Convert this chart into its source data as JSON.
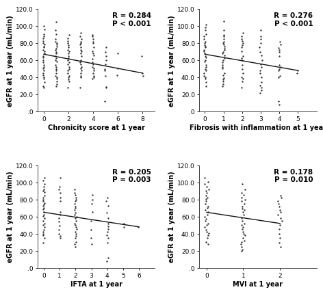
{
  "subplots": [
    {
      "xlabel": "Chronicity score at 1 year",
      "ylabel": "eGFR at 1 year (mL/min)",
      "R": "0.284",
      "P": "P < 0.001",
      "xlim": [
        -0.5,
        9
      ],
      "xticks": [
        0,
        2,
        4,
        6,
        8
      ],
      "regression": [
        0,
        67,
        8,
        45
      ],
      "scatter_x": [
        0,
        0,
        0,
        0,
        0,
        0,
        0,
        0,
        0,
        0,
        0,
        0,
        0,
        0,
        0,
        0,
        0,
        0,
        0,
        0,
        0,
        0,
        0,
        0,
        0,
        0,
        0,
        0,
        1,
        1,
        1,
        1,
        1,
        1,
        1,
        1,
        1,
        1,
        1,
        1,
        1,
        1,
        1,
        1,
        1,
        1,
        1,
        1,
        1,
        1,
        1,
        1,
        1,
        1,
        1,
        2,
        2,
        2,
        2,
        2,
        2,
        2,
        2,
        2,
        2,
        2,
        2,
        2,
        2,
        2,
        2,
        2,
        2,
        2,
        2,
        2,
        2,
        2,
        3,
        3,
        3,
        3,
        3,
        3,
        3,
        3,
        3,
        3,
        3,
        3,
        3,
        3,
        3,
        3,
        3,
        3,
        3,
        3,
        3,
        4,
        4,
        4,
        4,
        4,
        4,
        4,
        4,
        4,
        4,
        4,
        4,
        4,
        4,
        4,
        4,
        4,
        4,
        4,
        5,
        5,
        5,
        5,
        5,
        5,
        5,
        5,
        5,
        5,
        5,
        6,
        6,
        6,
        8,
        8,
        8
      ],
      "scatter_y": [
        100,
        96,
        90,
        88,
        85,
        82,
        80,
        78,
        76,
        75,
        72,
        70,
        68,
        65,
        63,
        60,
        58,
        55,
        52,
        50,
        48,
        45,
        42,
        40,
        38,
        35,
        30,
        28,
        105,
        95,
        90,
        85,
        82,
        80,
        78,
        76,
        74,
        72,
        70,
        68,
        65,
        62,
        60,
        58,
        55,
        52,
        50,
        48,
        45,
        42,
        40,
        38,
        35,
        32,
        30,
        90,
        85,
        82,
        80,
        78,
        75,
        72,
        70,
        68,
        65,
        62,
        60,
        58,
        55,
        52,
        50,
        48,
        45,
        42,
        40,
        38,
        35,
        28,
        92,
        88,
        85,
        82,
        80,
        78,
        75,
        72,
        70,
        68,
        65,
        60,
        58,
        55,
        52,
        50,
        48,
        45,
        42,
        40,
        28,
        90,
        88,
        85,
        82,
        80,
        75,
        70,
        68,
        65,
        62,
        58,
        55,
        52,
        50,
        48,
        45,
        42,
        40,
        38,
        75,
        70,
        65,
        60,
        55,
        50,
        48,
        42,
        29,
        28,
        12,
        68,
        50,
        42,
        65,
        45,
        42
      ]
    },
    {
      "xlabel": "Fibrosis with inflammation at 1 year",
      "ylabel": "eGFR at 1 year (mL/min)",
      "R": "0.276",
      "P": "P < 0.001",
      "xlim": [
        -0.3,
        6
      ],
      "xticks": [
        0,
        1,
        2,
        3,
        4,
        5
      ],
      "regression": [
        0,
        67,
        5,
        48
      ],
      "scatter_x": [
        0,
        0,
        0,
        0,
        0,
        0,
        0,
        0,
        0,
        0,
        0,
        0,
        0,
        0,
        0,
        0,
        0,
        0,
        0,
        0,
        0,
        0,
        0,
        0,
        0,
        0,
        0,
        0,
        1,
        1,
        1,
        1,
        1,
        1,
        1,
        1,
        1,
        1,
        1,
        1,
        1,
        1,
        1,
        1,
        1,
        1,
        1,
        1,
        1,
        1,
        1,
        1,
        1,
        1,
        1,
        2,
        2,
        2,
        2,
        2,
        2,
        2,
        2,
        2,
        2,
        2,
        2,
        2,
        2,
        2,
        2,
        2,
        2,
        3,
        3,
        3,
        3,
        3,
        3,
        3,
        3,
        3,
        3,
        3,
        3,
        3,
        3,
        3,
        3,
        3,
        3,
        4,
        4,
        4,
        4,
        4,
        4,
        4,
        4,
        4,
        4,
        4,
        4,
        4,
        4,
        5,
        5
      ],
      "scatter_y": [
        102,
        98,
        95,
        90,
        88,
        85,
        82,
        80,
        78,
        76,
        75,
        72,
        70,
        68,
        65,
        63,
        60,
        58,
        55,
        52,
        50,
        48,
        45,
        42,
        40,
        38,
        35,
        30,
        105,
        95,
        90,
        88,
        85,
        82,
        80,
        78,
        76,
        74,
        72,
        70,
        68,
        65,
        62,
        60,
        58,
        55,
        52,
        50,
        45,
        42,
        40,
        38,
        35,
        32,
        30,
        92,
        88,
        85,
        82,
        80,
        78,
        75,
        70,
        65,
        62,
        60,
        55,
        50,
        45,
        40,
        38,
        35,
        28,
        95,
        88,
        85,
        80,
        75,
        70,
        65,
        60,
        55,
        52,
        48,
        45,
        40,
        35,
        30,
        28,
        25,
        22,
        82,
        78,
        75,
        72,
        70,
        65,
        55,
        52,
        50,
        48,
        42,
        40,
        12,
        8,
        48,
        45
      ]
    },
    {
      "xlabel": "IFTA at 1 year",
      "ylabel": "eGFR at 1 year (mL/min)",
      "R": "0.205",
      "P": "P = 0.003",
      "xlim": [
        -0.4,
        7
      ],
      "xticks": [
        0,
        1,
        2,
        3,
        4,
        5,
        6
      ],
      "regression": [
        0,
        65,
        6,
        48
      ],
      "scatter_x": [
        0,
        0,
        0,
        0,
        0,
        0,
        0,
        0,
        0,
        0,
        0,
        0,
        0,
        0,
        0,
        0,
        0,
        0,
        0,
        0,
        0,
        0,
        0,
        0,
        0,
        0,
        0,
        0,
        0,
        0,
        1,
        1,
        1,
        1,
        1,
        1,
        1,
        1,
        1,
        1,
        1,
        1,
        1,
        1,
        1,
        2,
        2,
        2,
        2,
        2,
        2,
        2,
        2,
        2,
        2,
        2,
        2,
        2,
        2,
        2,
        2,
        2,
        2,
        2,
        2,
        2,
        2,
        2,
        2,
        2,
        2,
        3,
        3,
        3,
        3,
        3,
        3,
        3,
        3,
        4,
        4,
        4,
        4,
        4,
        4,
        4,
        4,
        4,
        4,
        4,
        4,
        4,
        4,
        5,
        5,
        6
      ],
      "scatter_y": [
        105,
        102,
        98,
        95,
        92,
        90,
        88,
        85,
        82,
        80,
        78,
        76,
        74,
        72,
        70,
        68,
        65,
        62,
        60,
        58,
        55,
        52,
        50,
        48,
        45,
        42,
        40,
        38,
        35,
        30,
        105,
        95,
        92,
        88,
        82,
        78,
        65,
        62,
        58,
        54,
        50,
        45,
        40,
        38,
        35,
        92,
        88,
        85,
        82,
        80,
        78,
        75,
        72,
        70,
        68,
        65,
        62,
        60,
        58,
        55,
        52,
        50,
        48,
        45,
        42,
        40,
        38,
        35,
        30,
        28,
        25,
        85,
        80,
        75,
        65,
        55,
        45,
        35,
        28,
        82,
        78,
        72,
        65,
        58,
        52,
        48,
        45,
        42,
        38,
        35,
        30,
        12,
        8,
        52,
        48,
        48
      ]
    },
    {
      "xlabel": "MVI at 1 year",
      "ylabel": "eGFR at 1 year (mL/min)",
      "R": "0.178",
      "P": "P = 0.010",
      "xlim": [
        -0.2,
        3
      ],
      "xticks": [
        0,
        1,
        2
      ],
      "regression": [
        0,
        65,
        2,
        52
      ],
      "scatter_x": [
        0,
        0,
        0,
        0,
        0,
        0,
        0,
        0,
        0,
        0,
        0,
        0,
        0,
        0,
        0,
        0,
        0,
        0,
        0,
        0,
        0,
        0,
        0,
        0,
        0,
        0,
        0,
        0,
        0,
        0,
        1,
        1,
        1,
        1,
        1,
        1,
        1,
        1,
        1,
        1,
        1,
        1,
        1,
        1,
        1,
        1,
        1,
        1,
        1,
        1,
        1,
        1,
        1,
        1,
        1,
        1,
        1,
        1,
        1,
        2,
        2,
        2,
        2,
        2,
        2,
        2,
        2,
        2,
        2,
        2,
        2,
        2,
        2,
        2,
        2
      ],
      "scatter_y": [
        105,
        100,
        98,
        95,
        92,
        90,
        88,
        85,
        82,
        80,
        78,
        75,
        72,
        70,
        68,
        65,
        62,
        60,
        58,
        55,
        52,
        50,
        48,
        45,
        42,
        40,
        38,
        35,
        30,
        28,
        98,
        92,
        88,
        85,
        82,
        80,
        78,
        75,
        72,
        70,
        68,
        65,
        62,
        58,
        55,
        52,
        50,
        48,
        45,
        42,
        40,
        38,
        35,
        32,
        30,
        28,
        25,
        22,
        20,
        85,
        82,
        78,
        75,
        72,
        68,
        65,
        62,
        58,
        55,
        50,
        45,
        40,
        35,
        30,
        25
      ]
    }
  ],
  "ylim": [
    0,
    120
  ],
  "ytick_values": [
    0,
    20,
    40,
    60,
    80,
    100,
    120
  ],
  "ytick_labels": [
    ".0",
    "20.0",
    "40.0",
    "60.0",
    "80.0",
    "100.0",
    "120.0"
  ],
  "marker_size": 3,
  "marker_color": "#333333",
  "line_color": "#111111",
  "annotation_fontsize": 7.5,
  "axis_label_fontsize": 7,
  "tick_fontsize": 6.5,
  "background_color": "#ffffff"
}
